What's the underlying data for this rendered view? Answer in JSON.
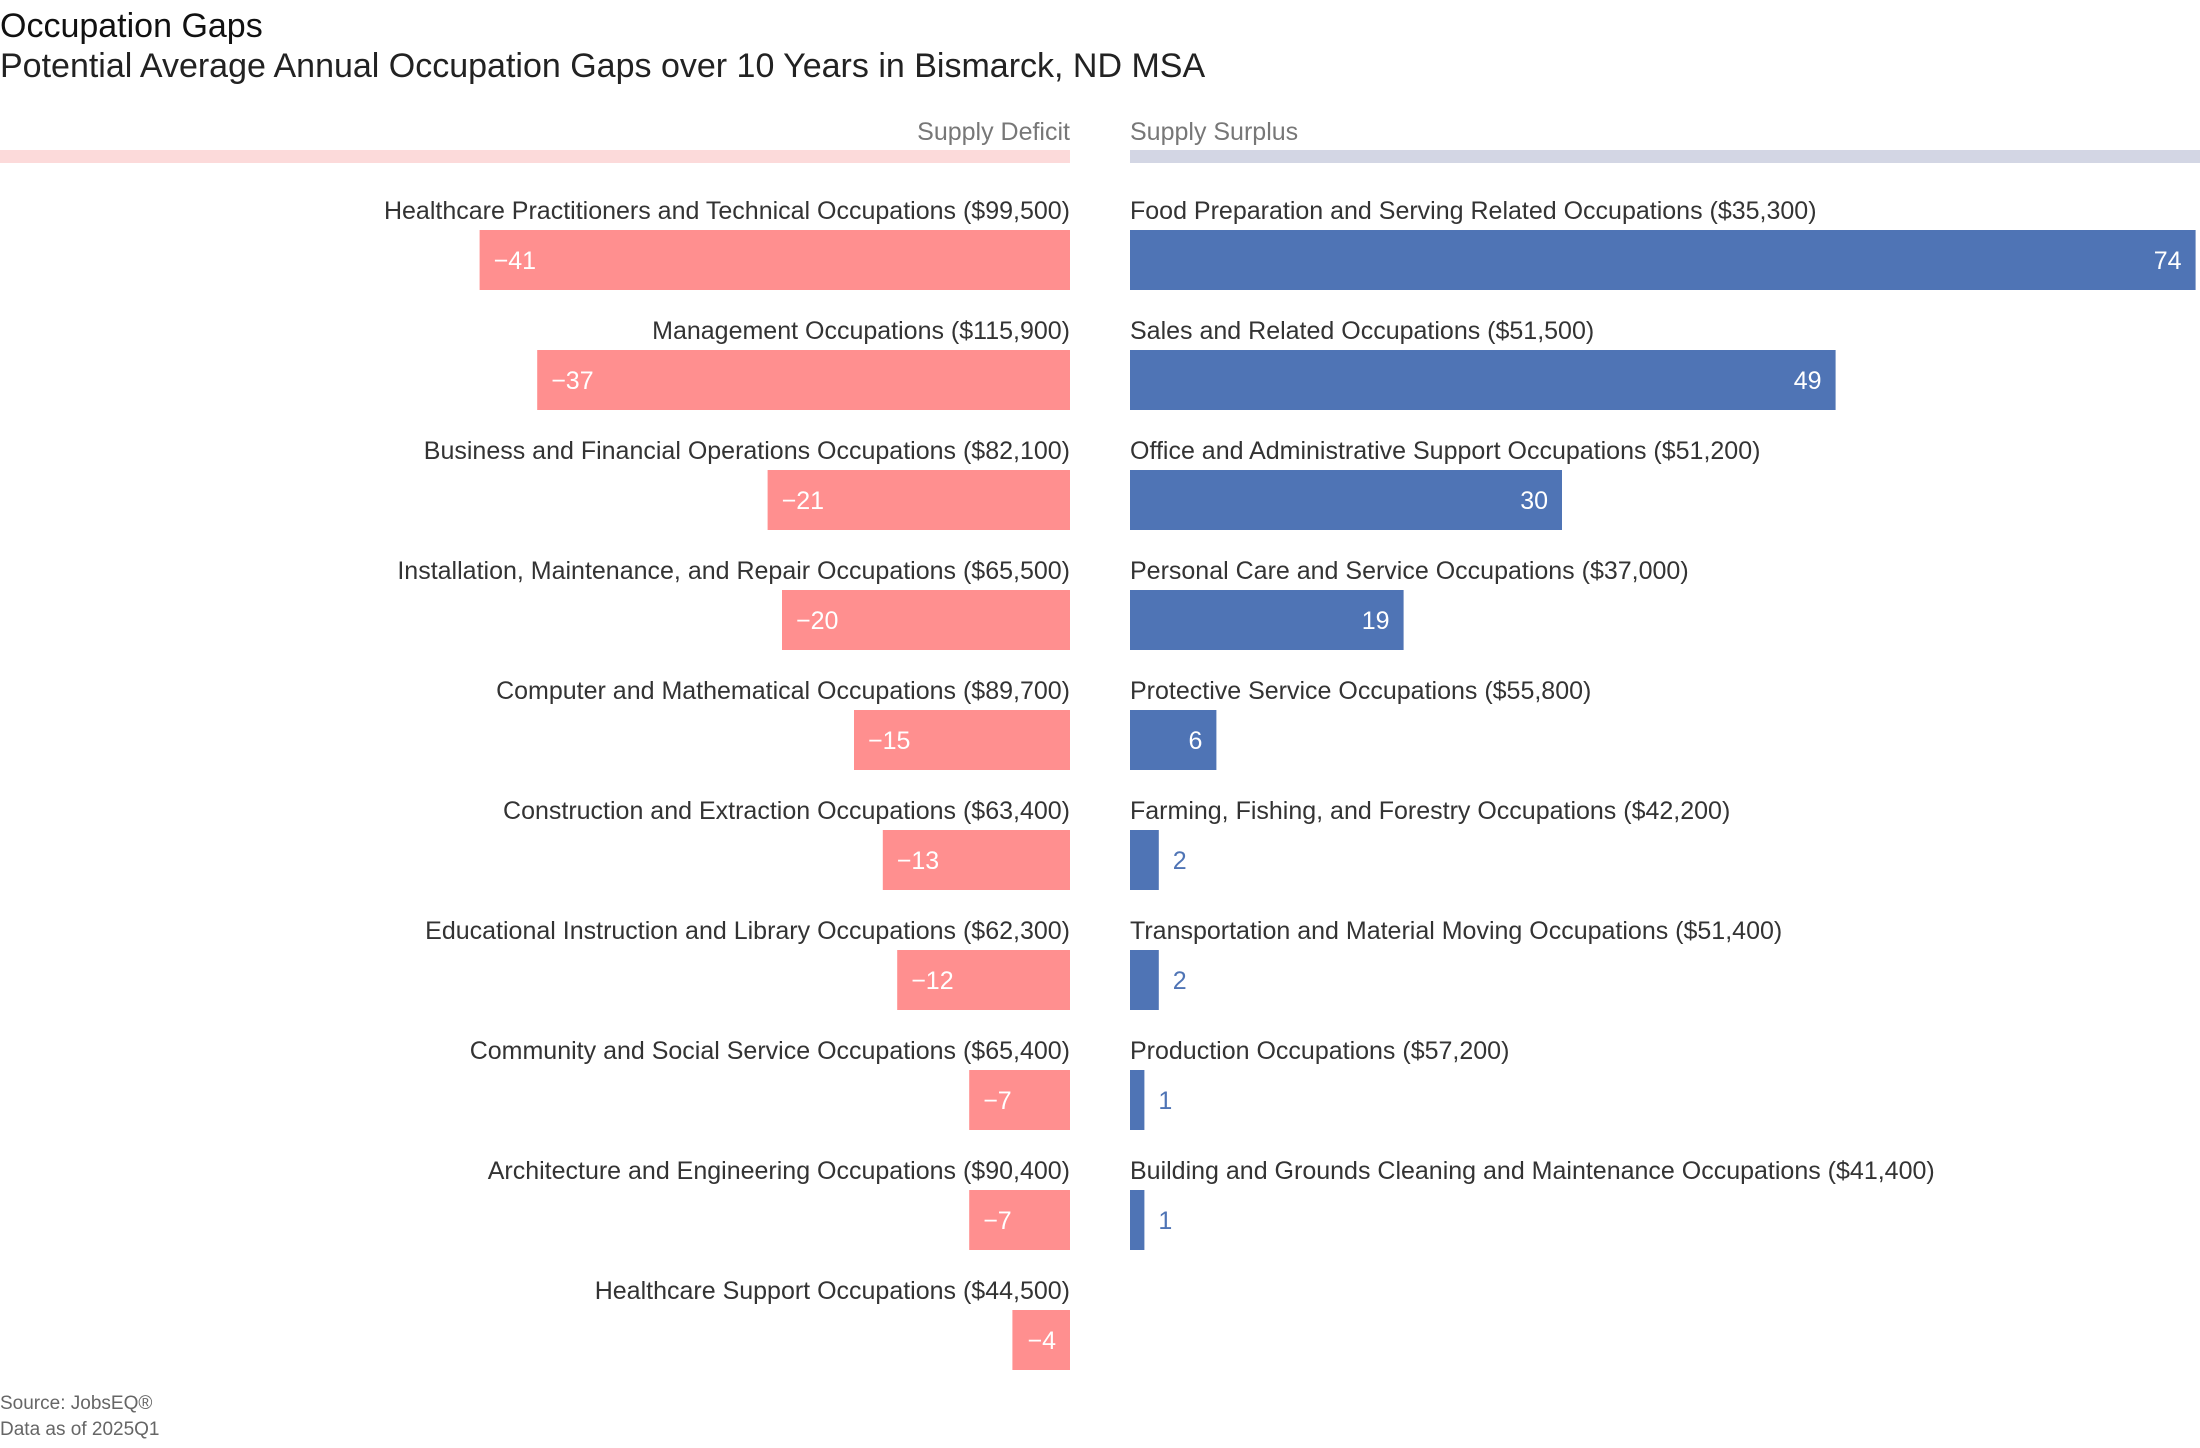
{
  "title": "Occupation Gaps",
  "subtitle": "Potential Average Annual Occupation Gaps over 10 Years in Bismarck, ND MSA",
  "source": "Source: JobsEQ®",
  "data_as_of": "Data as of 2025Q1",
  "colors": {
    "deficit": "#ff8f8f",
    "deficit_header": "#fcdada",
    "surplus": "#4f74b5",
    "surplus_header": "#d3d6e4",
    "label": "#333333",
    "header_text": "#777777"
  },
  "chart_data": {
    "type": "bar",
    "title": "Occupation Gaps",
    "subtitle": "Potential Average Annual Occupation Gaps over 10 Years in Bismarck, ND MSA",
    "panels": [
      {
        "name": "Supply Deficit",
        "series": [
          {
            "label": "Healthcare Practitioners and Technical Occupations ($99,500)",
            "value": -41,
            "display": "−41"
          },
          {
            "label": "Management Occupations ($115,900)",
            "value": -37,
            "display": "−37"
          },
          {
            "label": "Business and Financial Operations Occupations ($82,100)",
            "value": -21,
            "display": "−21"
          },
          {
            "label": "Installation, Maintenance, and Repair Occupations ($65,500)",
            "value": -20,
            "display": "−20"
          },
          {
            "label": "Computer and Mathematical Occupations ($89,700)",
            "value": -15,
            "display": "−15"
          },
          {
            "label": "Construction and Extraction Occupations ($63,400)",
            "value": -13,
            "display": "−13"
          },
          {
            "label": "Educational Instruction and Library Occupations ($62,300)",
            "value": -12,
            "display": "−12"
          },
          {
            "label": "Community and Social Service Occupations ($65,400)",
            "value": -7,
            "display": "−7"
          },
          {
            "label": "Architecture and Engineering Occupations ($90,400)",
            "value": -7,
            "display": "−7"
          },
          {
            "label": "Healthcare Support Occupations ($44,500)",
            "value": -4,
            "display": "−4"
          }
        ]
      },
      {
        "name": "Supply Surplus",
        "series": [
          {
            "label": "Food Preparation and Serving Related Occupations ($35,300)",
            "value": 74,
            "display": "74"
          },
          {
            "label": "Sales and Related Occupations ($51,500)",
            "value": 49,
            "display": "49"
          },
          {
            "label": "Office and Administrative Support Occupations ($51,200)",
            "value": 30,
            "display": "30"
          },
          {
            "label": "Personal Care and Service Occupations ($37,000)",
            "value": 19,
            "display": "19"
          },
          {
            "label": "Protective Service Occupations ($55,800)",
            "value": 6,
            "display": "6"
          },
          {
            "label": "Farming, Fishing, and Forestry Occupations ($42,200)",
            "value": 2,
            "display": "2"
          },
          {
            "label": "Transportation and Material Moving Occupations ($51,400)",
            "value": 2,
            "display": "2"
          },
          {
            "label": "Production Occupations ($57,200)",
            "value": 1,
            "display": "1"
          },
          {
            "label": "Building and Grounds Cleaning and Maintenance Occupations ($41,400)",
            "value": 1,
            "display": "1"
          }
        ]
      }
    ]
  }
}
